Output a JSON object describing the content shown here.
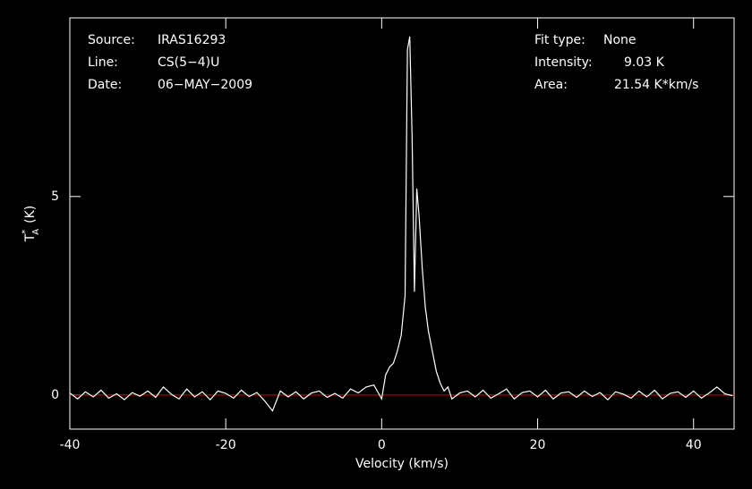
{
  "chart_data": {
    "type": "line",
    "xlabel": "Velocity (km/s)",
    "ylabel": {
      "main": "T",
      "sub": "A",
      "sup": "*",
      "unit": "(K)"
    },
    "info_left": [
      {
        "label": "Source:",
        "value": "IRAS16293"
      },
      {
        "label": "Line:",
        "value": "CS(5−4)U"
      },
      {
        "label": "Date:",
        "value": "06−MAY−2009"
      }
    ],
    "info_right": [
      {
        "label": "Fit type:",
        "value": "None"
      },
      {
        "label": "Intensity:",
        "value": "9.03 K"
      },
      {
        "label": "Area:",
        "value": "21.54 K*km/s"
      }
    ],
    "xlim": [
      -40,
      45.2
    ],
    "ylim": [
      -0.86,
      9.5
    ],
    "xticks": [
      -40,
      -20,
      0,
      20,
      40
    ],
    "yticks": [
      0,
      5
    ],
    "color": "#ffffff",
    "baseline": 0,
    "baseline_color": "#cc0000",
    "x": [
      -40,
      -39,
      -38,
      -37,
      -36,
      -35,
      -34,
      -33,
      -32,
      -31,
      -30,
      -29,
      -28,
      -27,
      -26,
      -25,
      -24,
      -23,
      -22,
      -21,
      -20,
      -19,
      -18,
      -17,
      -16,
      -15,
      -14,
      -13,
      -12,
      -11,
      -10,
      -9,
      -8,
      -7,
      -6,
      -5,
      -4,
      -3,
      -2,
      -1,
      0,
      0.5,
      1,
      1.5,
      2,
      2.5,
      3,
      3.3,
      3.6,
      3.9,
      4.2,
      4.5,
      4.8,
      5.2,
      5.6,
      6,
      6.5,
      7,
      7.5,
      8,
      8.5,
      9,
      10,
      11,
      12,
      13,
      14,
      15,
      16,
      17,
      18,
      19,
      20,
      21,
      22,
      23,
      24,
      25,
      26,
      27,
      28,
      29,
      30,
      31,
      32,
      33,
      34,
      35,
      36,
      37,
      38,
      39,
      40,
      41,
      42,
      43,
      44,
      45
    ],
    "values": [
      0.05,
      -0.1,
      0.08,
      -0.05,
      0.12,
      -0.08,
      0.03,
      -0.12,
      0.06,
      -0.03,
      0.1,
      -0.06,
      0.2,
      0.02,
      -0.1,
      0.15,
      -0.05,
      0.08,
      -0.12,
      0.1,
      0.04,
      -0.08,
      0.12,
      -0.04,
      0.06,
      -0.15,
      -0.4,
      0.1,
      -0.05,
      0.08,
      -0.1,
      0.05,
      0.1,
      -0.06,
      0.04,
      -0.08,
      0.15,
      0.05,
      0.2,
      0.25,
      -0.1,
      0.5,
      0.7,
      0.8,
      1.1,
      1.5,
      2.5,
      8.7,
      9.03,
      6.5,
      2.6,
      5.2,
      4.5,
      3.2,
      2.2,
      1.6,
      1.1,
      0.6,
      0.3,
      0.1,
      0.2,
      -0.1,
      0.05,
      0.1,
      -0.05,
      0.12,
      -0.08,
      0.03,
      0.15,
      -0.1,
      0.06,
      0.1,
      -0.05,
      0.12,
      -0.1,
      0.05,
      0.08,
      -0.06,
      0.1,
      -0.04,
      0.06,
      -0.12,
      0.08,
      0.02,
      -0.08,
      0.1,
      -0.05,
      0.12,
      -0.1,
      0.04,
      0.08,
      -0.06,
      0.1,
      -0.08,
      0.05,
      0.2,
      0.03,
      -0.02
    ]
  }
}
